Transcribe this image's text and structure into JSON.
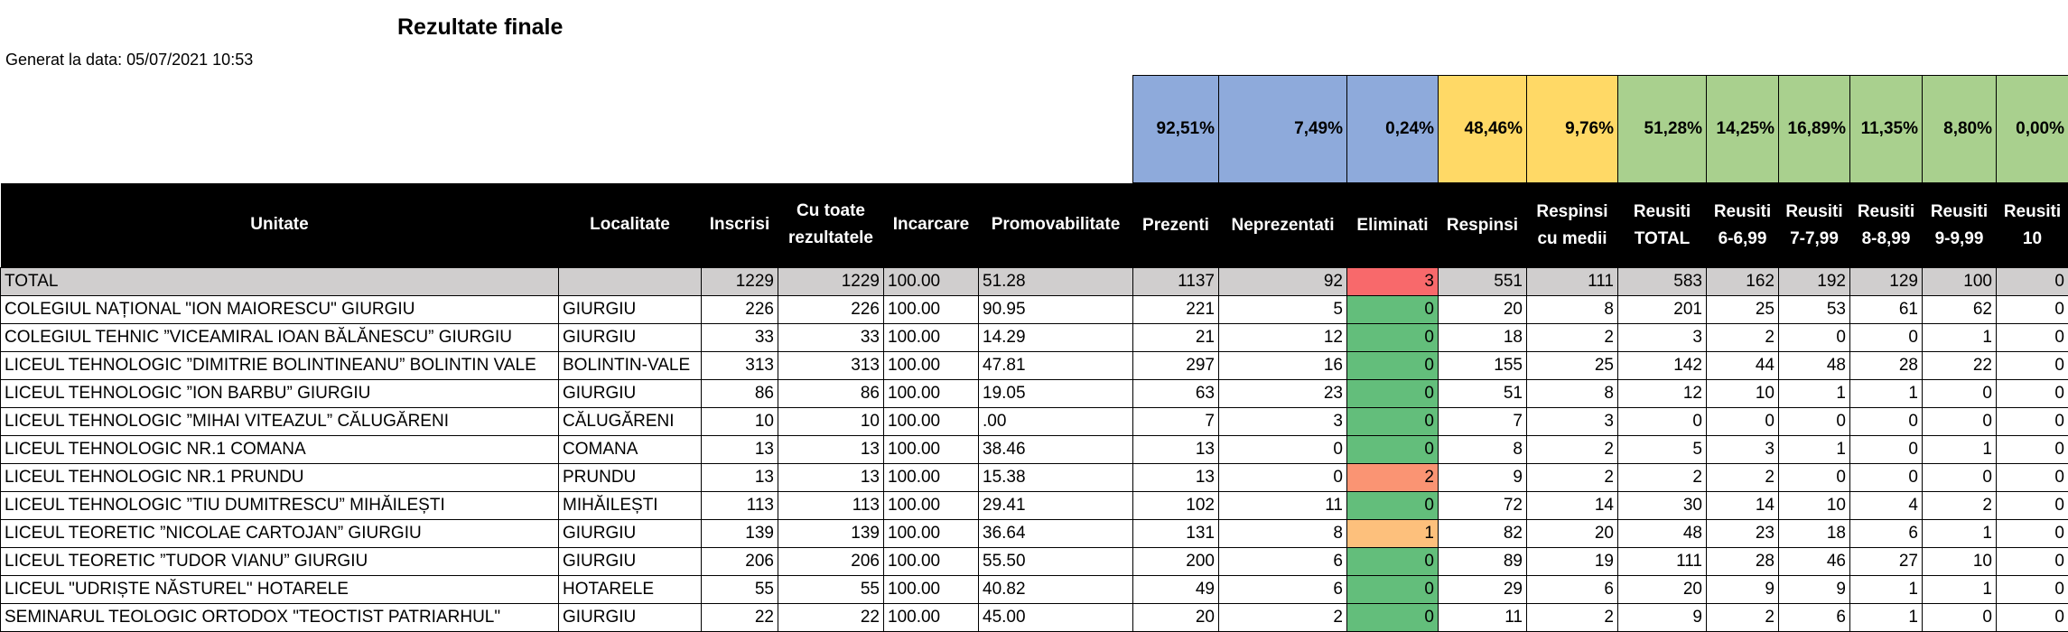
{
  "header": {
    "title": "Rezultate finale",
    "generated": "Generat la data: 05/07/2021 10:53"
  },
  "summary": [
    {
      "text": "92,51%",
      "color": "#8eaadb"
    },
    {
      "text": "7,49%",
      "color": "#8eaadb"
    },
    {
      "text": "0,24%",
      "color": "#8eaadb"
    },
    {
      "text": "48,46%",
      "color": "#ffd966"
    },
    {
      "text": "9,76%",
      "color": "#ffd966"
    },
    {
      "text": "51,28%",
      "color": "#a9d08e"
    },
    {
      "text": "14,25%",
      "color": "#a9d08e"
    },
    {
      "text": "16,89%",
      "color": "#a9d08e"
    },
    {
      "text": "11,35%",
      "color": "#a9d08e"
    },
    {
      "text": "8,80%",
      "color": "#a9d08e"
    },
    {
      "text": "0,00%",
      "color": "#a9d08e"
    }
  ],
  "eliminati_colors": [
    "#63be7b",
    "#ffeb84",
    "#f8696b"
  ],
  "table": {
    "columns": [
      "Unitate",
      "Localitate",
      "Inscrisi",
      "Cu toate rezultatele",
      "Incarcare",
      "Promovabilitate",
      "Prezenti",
      "Neprezentati",
      "Eliminati",
      "Respinsi",
      "Respinsi cu medii",
      "Reusiti TOTAL",
      "Reusiti 6-6,99",
      "Reusiti 7-7,99",
      "Reusiti 8-8,99",
      "Reusiti 9-9,99",
      "Reusiti 10"
    ],
    "rows": [
      [
        "TOTAL",
        null,
        "1229",
        "1229",
        "100.00",
        "51.28",
        "1137",
        "92",
        "3",
        "551",
        "111",
        "583",
        "162",
        "192",
        "129",
        "100",
        "0"
      ],
      [
        "COLEGIUL NAȚIONAL \"ION MAIORESCU\" GIURGIU",
        "GIURGIU",
        "226",
        "226",
        "100.00",
        "90.95",
        "221",
        "5",
        "0",
        "20",
        "8",
        "201",
        "25",
        "53",
        "61",
        "62",
        "0"
      ],
      [
        "COLEGIUL TEHNIC ”VICEAMIRAL IOAN BĂLĂNESCU” GIURGIU",
        "GIURGIU",
        "33",
        "33",
        "100.00",
        "14.29",
        "21",
        "12",
        "0",
        "18",
        "2",
        "3",
        "2",
        "0",
        "0",
        "1",
        "0"
      ],
      [
        "LICEUL TEHNOLOGIC ”DIMITRIE BOLINTINEANU” BOLINTIN VALE",
        "BOLINTIN-VALE",
        "313",
        "313",
        "100.00",
        "47.81",
        "297",
        "16",
        "0",
        "155",
        "25",
        "142",
        "44",
        "48",
        "28",
        "22",
        "0"
      ],
      [
        "LICEUL TEHNOLOGIC ”ION BARBU” GIURGIU",
        "GIURGIU",
        "86",
        "86",
        "100.00",
        "19.05",
        "63",
        "23",
        "0",
        "51",
        "8",
        "12",
        "10",
        "1",
        "1",
        "0",
        "0"
      ],
      [
        "LICEUL TEHNOLOGIC ”MIHAI VITEAZUL” CĂLUGĂRENI",
        "CĂLUGĂRENI",
        "10",
        "10",
        "100.00",
        ".00",
        "7",
        "3",
        "0",
        "7",
        "3",
        "0",
        "0",
        "0",
        "0",
        "0",
        "0"
      ],
      [
        "LICEUL TEHNOLOGIC NR.1 COMANA",
        "COMANA",
        "13",
        "13",
        "100.00",
        "38.46",
        "13",
        "0",
        "0",
        "8",
        "2",
        "5",
        "3",
        "1",
        "0",
        "1",
        "0"
      ],
      [
        "LICEUL TEHNOLOGIC NR.1 PRUNDU",
        "PRUNDU",
        "13",
        "13",
        "100.00",
        "15.38",
        "13",
        "0",
        "2",
        "9",
        "2",
        "2",
        "2",
        "0",
        "0",
        "0",
        "0"
      ],
      [
        "LICEUL TEHNOLOGIC ”TIU DUMITRESCU” MIHĂILEȘTI",
        "MIHĂILEȘTI",
        "113",
        "113",
        "100.00",
        "29.41",
        "102",
        "11",
        "0",
        "72",
        "14",
        "30",
        "14",
        "10",
        "4",
        "2",
        "0"
      ],
      [
        "LICEUL TEORETIC ”NICOLAE CARTOJAN” GIURGIU",
        "GIURGIU",
        "139",
        "139",
        "100.00",
        "36.64",
        "131",
        "8",
        "1",
        "82",
        "20",
        "48",
        "23",
        "18",
        "6",
        "1",
        "0"
      ],
      [
        "LICEUL TEORETIC ”TUDOR VIANU” GIURGIU",
        "GIURGIU",
        "206",
        "206",
        "100.00",
        "55.50",
        "200",
        "6",
        "0",
        "89",
        "19",
        "111",
        "28",
        "46",
        "27",
        "10",
        "0"
      ],
      [
        "LICEUL \"UDRIȘTE NĂSTUREL\" HOTARELE",
        "HOTARELE",
        "55",
        "55",
        "100.00",
        "40.82",
        "49",
        "6",
        "0",
        "29",
        "6",
        "20",
        "9",
        "9",
        "1",
        "1",
        "0"
      ],
      [
        "SEMINARUL TEOLOGIC ORTODOX \"TEOCTIST PATRIARHUL\"",
        "GIURGIU",
        "22",
        "22",
        "100.00",
        "45.00",
        "20",
        "2",
        "0",
        "11",
        "2",
        "9",
        "2",
        "6",
        "1",
        "0",
        "0"
      ]
    ]
  }
}
